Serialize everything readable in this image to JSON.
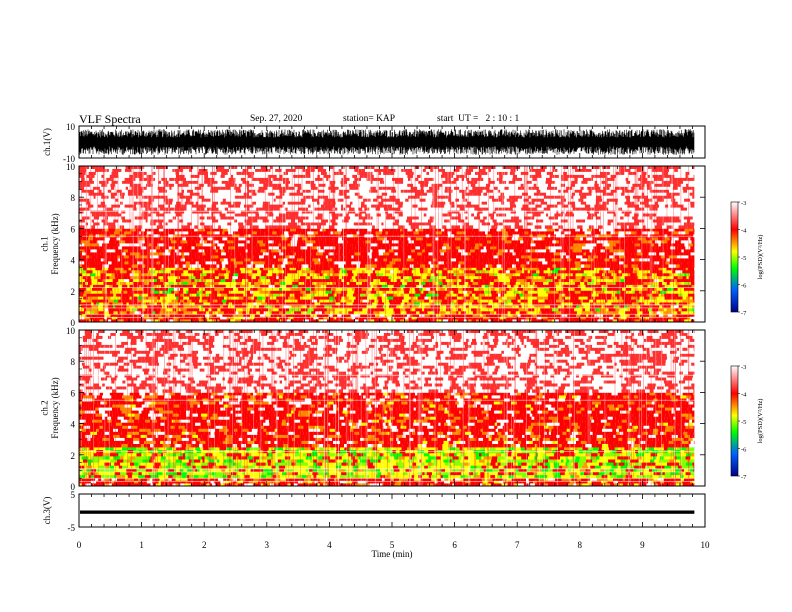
{
  "header": {
    "title": "VLF Spectra",
    "date": "Sep. 27, 2020",
    "station": "station= KAP",
    "start_ut": "start  UT =   2 : 10 : 1"
  },
  "colors": {
    "low": "#00008b",
    "mid_low": "#0080ff",
    "mid": "#00ff00",
    "mid_high": "#ffff00",
    "high": "#ff0000",
    "top": "#ffffff"
  },
  "chart_data": [
    {
      "type": "line",
      "panel": "ch1-waveform",
      "ylabel": "ch.1(V)",
      "ylim": [
        -10,
        10
      ],
      "yticks": [
        "10",
        "-10"
      ],
      "x_range_min": [
        0,
        9.83
      ],
      "amplitude_envelope": [
        -8,
        8
      ]
    },
    {
      "type": "heatmap",
      "panel": "ch1-spectrogram",
      "ylabel": "ch.1\nFrequency (kHz)",
      "ylabel_line1": "ch.1",
      "ylabel_line2": "Frequency (kHz)",
      "ylim": [
        0,
        10
      ],
      "yticks": [
        "0",
        "2",
        "4",
        "6",
        "8",
        "10"
      ],
      "colorbar": {
        "label": "log(PSD)(V²/Hz)",
        "ticks": [
          "-3",
          "-4",
          "-5",
          "-6",
          "-7"
        ],
        "range": [
          -7,
          -3
        ]
      },
      "dominant_bands_khz": [
        {
          "from": 0,
          "to": 0.5,
          "level": -4.3
        },
        {
          "from": 0.5,
          "to": 3.5,
          "level": -4.6
        },
        {
          "from": 3.5,
          "to": 6,
          "level": -4.1
        },
        {
          "from": 6,
          "to": 10,
          "level": -3.5
        }
      ]
    },
    {
      "type": "heatmap",
      "panel": "ch2-spectrogram",
      "ylabel_line1": "ch.2",
      "ylabel_line2": "Frequency (kHz)",
      "ylim": [
        0,
        10
      ],
      "yticks": [
        "0",
        "2",
        "4",
        "6",
        "8",
        "10"
      ],
      "colorbar": {
        "label": "log(PSD)(V²/Hz)",
        "ticks": [
          "-3",
          "-4",
          "-5",
          "-6",
          "-7"
        ],
        "range": [
          -7,
          -3
        ]
      },
      "dominant_bands_khz": [
        {
          "from": 0,
          "to": 0.5,
          "level": -4.3
        },
        {
          "from": 0.5,
          "to": 2.5,
          "level": -4.9
        },
        {
          "from": 2.5,
          "to": 6,
          "level": -4.2
        },
        {
          "from": 6,
          "to": 10,
          "level": -3.5
        }
      ]
    },
    {
      "type": "line",
      "panel": "ch3-waveform",
      "ylabel": "ch.3(V)",
      "ylim": [
        -5,
        5
      ],
      "yticks": [
        "5",
        "-5"
      ],
      "x_range_min": [
        0,
        9.83
      ],
      "amplitude_envelope": [
        -1,
        0
      ]
    }
  ],
  "xaxis": {
    "label": "Time (min)",
    "range": [
      0,
      10
    ],
    "ticks": [
      "0",
      "1",
      "2",
      "3",
      "4",
      "5",
      "6",
      "7",
      "8",
      "9",
      "10"
    ]
  }
}
